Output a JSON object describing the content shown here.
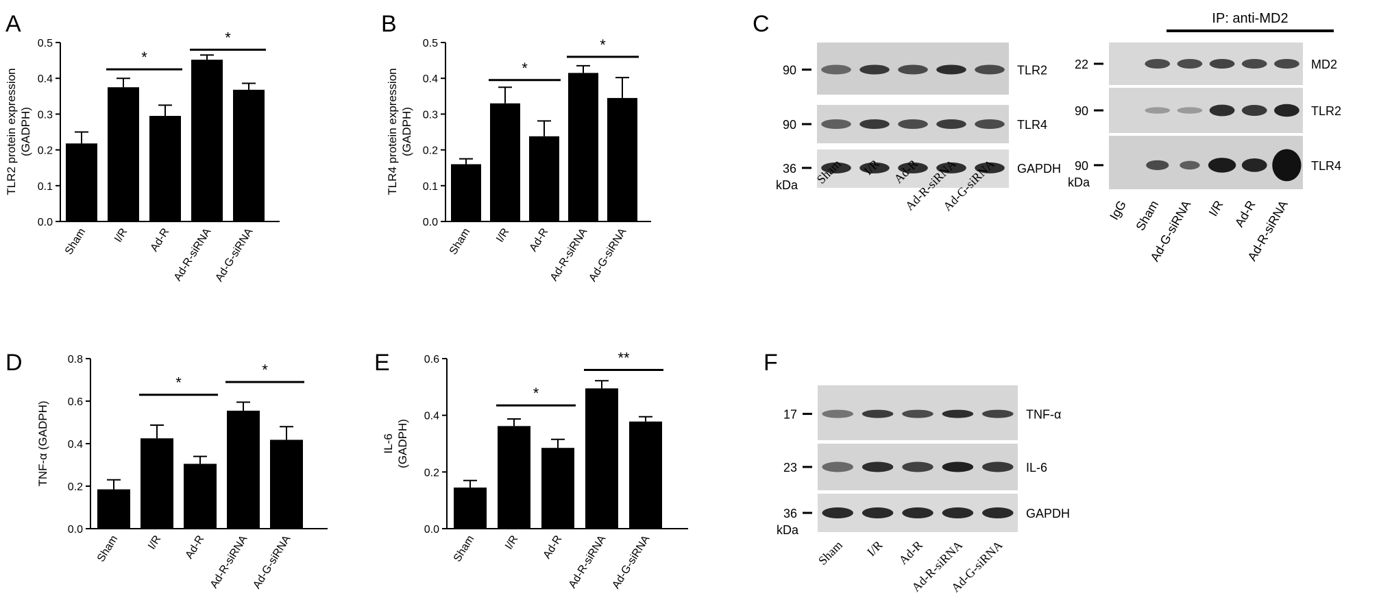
{
  "panels": {
    "A": {
      "letter": "A"
    },
    "B": {
      "letter": "B"
    },
    "C": {
      "letter": "C"
    },
    "D": {
      "letter": "D"
    },
    "E": {
      "letter": "E"
    },
    "F": {
      "letter": "F"
    }
  },
  "chart_data": [
    {
      "panel": "A",
      "type": "bar",
      "categories": [
        "Sham",
        "I/R",
        "Ad-R",
        "Ad-R-siRNA",
        "Ad-G-siRNA"
      ],
      "values": [
        0.218,
        0.375,
        0.295,
        0.452,
        0.368
      ],
      "errors": [
        0.032,
        0.025,
        0.03,
        0.013,
        0.018
      ],
      "ylabel": "TLR2 protein expression\n(GADPH)",
      "ylim": [
        0,
        0.5
      ],
      "yticks": [
        "0.0",
        "0.1",
        "0.2",
        "0.3",
        "0.4",
        "0.5"
      ],
      "significance": [
        {
          "from": 1,
          "to": 2,
          "label": "*",
          "y": 0.425
        },
        {
          "from": 3,
          "to": 4,
          "label": "*",
          "y": 0.48
        }
      ]
    },
    {
      "panel": "B",
      "type": "bar",
      "categories": [
        "Sham",
        "I/R",
        "Ad-R",
        "Ad-R-siRNA",
        "Ad-G-siRNA"
      ],
      "values": [
        0.16,
        0.33,
        0.238,
        0.415,
        0.345
      ],
      "errors": [
        0.015,
        0.045,
        0.043,
        0.02,
        0.057
      ],
      "ylabel": "TLR4 protein expression\n(GADPH)",
      "ylim": [
        0,
        0.5
      ],
      "yticks": [
        "0.0",
        "0.1",
        "0.2",
        "0.3",
        "0.4",
        "0.5"
      ],
      "significance": [
        {
          "from": 1,
          "to": 2,
          "label": "*",
          "y": 0.395
        },
        {
          "from": 3,
          "to": 4,
          "label": "*",
          "y": 0.46
        }
      ]
    },
    {
      "panel": "D",
      "type": "bar",
      "categories": [
        "Sham",
        "I/R",
        "Ad-R",
        "Ad-R-siRNA",
        "Ad-G-siRNA"
      ],
      "values": [
        0.185,
        0.425,
        0.305,
        0.555,
        0.418
      ],
      "errors": [
        0.045,
        0.062,
        0.035,
        0.04,
        0.062
      ],
      "ylabel": "TNF-α  (GADPH)",
      "ylim": [
        0,
        0.8
      ],
      "yticks": [
        "0.0",
        "0.2",
        "0.4",
        "0.6",
        "0.8"
      ],
      "significance": [
        {
          "from": 1,
          "to": 2,
          "label": "*",
          "y": 0.63
        },
        {
          "from": 3,
          "to": 4,
          "label": "*",
          "y": 0.69
        }
      ]
    },
    {
      "panel": "E",
      "type": "bar",
      "categories": [
        "Sham",
        "I/R",
        "Ad-R",
        "Ad-R-siRNA",
        "Ad-G-siRNA"
      ],
      "values": [
        0.145,
        0.362,
        0.285,
        0.495,
        0.378
      ],
      "errors": [
        0.025,
        0.025,
        0.03,
        0.027,
        0.017
      ],
      "ylabel": "IL-6\n(GADPH)",
      "ylim": [
        0,
        0.6
      ],
      "yticks": [
        "0.0",
        "0.2",
        "0.4",
        "0.6"
      ],
      "significance": [
        {
          "from": 1,
          "to": 2,
          "label": "*",
          "y": 0.435
        },
        {
          "from": 3,
          "to": 4,
          "label": "**",
          "y": 0.56
        }
      ]
    }
  ],
  "blots": {
    "C_left": {
      "markers": [
        "90",
        "90",
        "36"
      ],
      "bands": [
        "TLR2",
        "TLR4",
        "GAPDH"
      ],
      "unit": "kDa",
      "lanes": [
        "Sham",
        "I/R",
        "Ad-R",
        "Ad-R-siRNA",
        "Ad-G-siRNA"
      ]
    },
    "C_right": {
      "header": "IP: anti-MD2",
      "markers": [
        "22",
        "90",
        "90"
      ],
      "bands": [
        "MD2",
        "TLR2",
        "TLR4"
      ],
      "unit": "kDa",
      "lanes": [
        "IgG",
        "Sham",
        "Ad-G-siRNA",
        "I/R",
        "Ad-R",
        "Ad-R-siRNA"
      ]
    },
    "F": {
      "markers": [
        "17",
        "23",
        "36"
      ],
      "bands": [
        "TNF-α",
        "IL-6",
        "GAPDH"
      ],
      "unit": "kDa",
      "lanes": [
        "Sham",
        "I/R",
        "Ad-R",
        "Ad-R-siRNA",
        "Ad-G-siRNA"
      ]
    }
  }
}
